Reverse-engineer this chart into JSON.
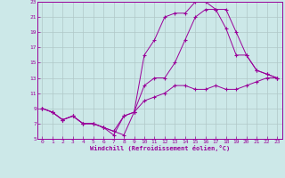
{
  "xlabel": "Windchill (Refroidissement éolien,°C)",
  "bg_color": "#cce8e8",
  "line_color": "#990099",
  "grid_color": "#b0c8c8",
  "xlim": [
    -0.5,
    23.5
  ],
  "ylim": [
    5,
    23
  ],
  "xticks": [
    0,
    1,
    2,
    3,
    4,
    5,
    6,
    7,
    8,
    9,
    10,
    11,
    12,
    13,
    14,
    15,
    16,
    17,
    18,
    19,
    20,
    21,
    22,
    23
  ],
  "yticks": [
    5,
    7,
    9,
    11,
    13,
    15,
    17,
    19,
    21,
    23
  ],
  "line1_x": [
    0,
    1,
    2,
    3,
    4,
    5,
    6,
    7,
    8,
    9,
    10,
    11,
    12,
    13,
    14,
    15,
    16,
    17,
    18,
    19,
    20,
    21,
    22,
    23
  ],
  "line1_y": [
    9,
    8.5,
    7.5,
    8,
    7,
    7,
    6.5,
    6,
    5.5,
    8.5,
    10,
    10.5,
    11,
    12,
    12,
    11.5,
    11.5,
    12,
    11.5,
    11.5,
    12,
    12.5,
    13,
    13
  ],
  "line2_x": [
    0,
    1,
    2,
    3,
    4,
    5,
    6,
    7,
    8,
    9,
    10,
    11,
    12,
    13,
    14,
    15,
    16,
    17,
    18,
    19,
    20,
    21,
    22,
    23
  ],
  "line2_y": [
    9,
    8.5,
    7.5,
    8,
    7,
    7,
    6.5,
    6,
    8,
    8.5,
    12,
    13,
    13,
    15,
    18,
    21,
    22,
    22,
    19.5,
    16,
    16,
    14,
    13.5,
    13
  ],
  "line3_x": [
    0,
    1,
    2,
    3,
    4,
    5,
    6,
    7,
    8,
    9,
    10,
    11,
    12,
    13,
    14,
    15,
    16,
    17,
    18,
    19,
    20,
    21,
    22,
    23
  ],
  "line3_y": [
    9,
    8.5,
    7.5,
    8,
    7,
    7,
    6.5,
    5.5,
    8,
    8.5,
    16,
    18,
    21,
    21.5,
    21.5,
    23,
    23,
    22,
    22,
    19,
    16,
    14,
    13.5,
    13
  ]
}
